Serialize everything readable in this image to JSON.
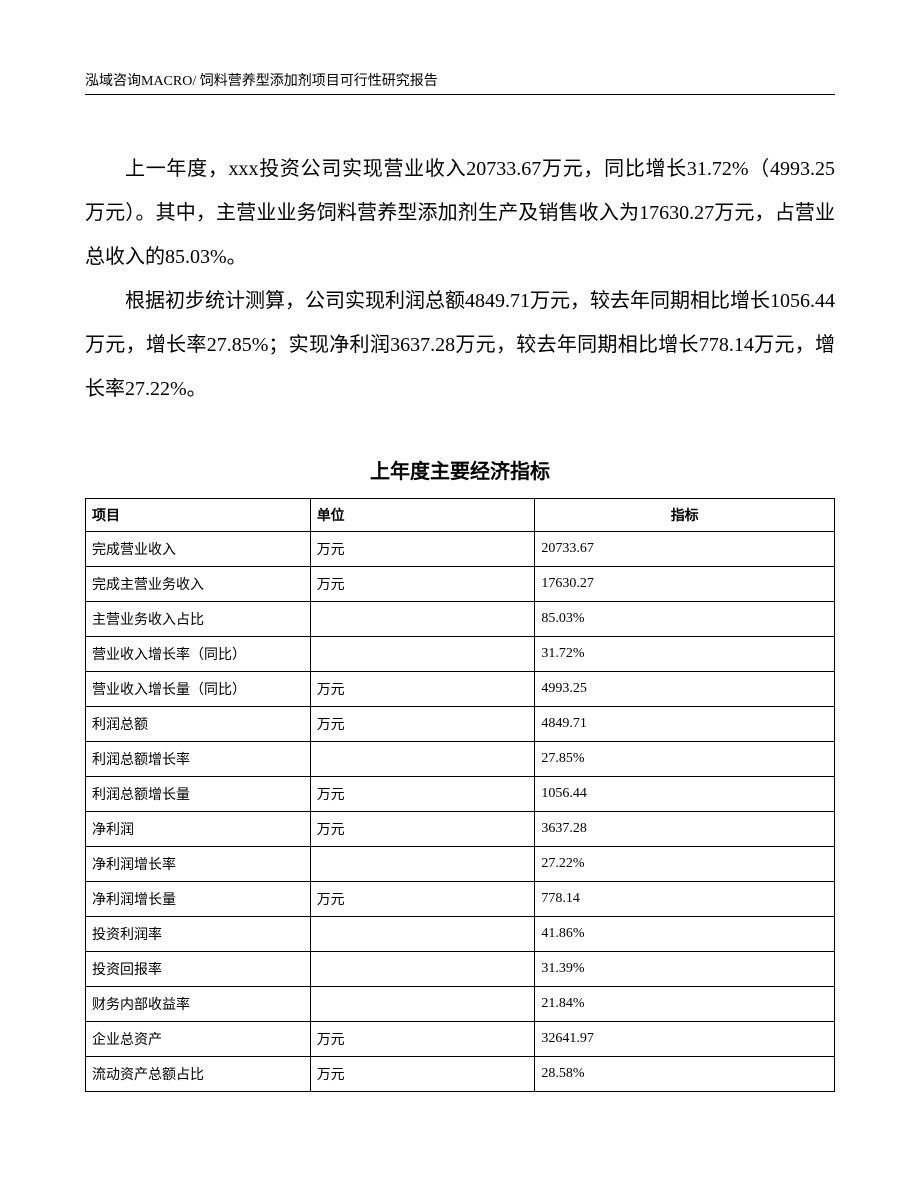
{
  "header": {
    "text": "泓域咨询MACRO/    饲料营养型添加剂项目可行性研究报告"
  },
  "paragraphs": {
    "p1": "上一年度，xxx投资公司实现营业收入20733.67万元，同比增长31.72%（4993.25万元）。其中，主营业业务饲料营养型添加剂生产及销售收入为17630.27万元，占营业总收入的85.03%。",
    "p2": "根据初步统计测算，公司实现利润总额4849.71万元，较去年同期相比增长1056.44万元，增长率27.85%；实现净利润3637.28万元，较去年同期相比增长778.14万元，增长率27.22%。"
  },
  "table": {
    "title": "上年度主要经济指标",
    "columns": {
      "item": "项目",
      "unit": "单位",
      "value": "指标"
    },
    "rows": [
      {
        "item": "完成营业收入",
        "unit": "万元",
        "value": "20733.67"
      },
      {
        "item": "完成主营业务收入",
        "unit": "万元",
        "value": "17630.27"
      },
      {
        "item": "主营业务收入占比",
        "unit": "",
        "value": "85.03%"
      },
      {
        "item": "营业收入增长率（同比）",
        "unit": "",
        "value": "31.72%"
      },
      {
        "item": "营业收入增长量（同比）",
        "unit": "万元",
        "value": "4993.25"
      },
      {
        "item": "利润总额",
        "unit": "万元",
        "value": "4849.71"
      },
      {
        "item": "利润总额增长率",
        "unit": "",
        "value": "27.85%"
      },
      {
        "item": "利润总额增长量",
        "unit": "万元",
        "value": "1056.44"
      },
      {
        "item": "净利润",
        "unit": "万元",
        "value": "3637.28"
      },
      {
        "item": "净利润增长率",
        "unit": "",
        "value": "27.22%"
      },
      {
        "item": "净利润增长量",
        "unit": "万元",
        "value": "778.14"
      },
      {
        "item": "投资利润率",
        "unit": "",
        "value": "41.86%"
      },
      {
        "item": "投资回报率",
        "unit": "",
        "value": "31.39%"
      },
      {
        "item": "财务内部收益率",
        "unit": "",
        "value": "21.84%"
      },
      {
        "item": "企业总资产",
        "unit": "万元",
        "value": "32641.97"
      },
      {
        "item": "流动资产总额占比",
        "unit": "万元",
        "value": "28.58%"
      }
    ]
  }
}
